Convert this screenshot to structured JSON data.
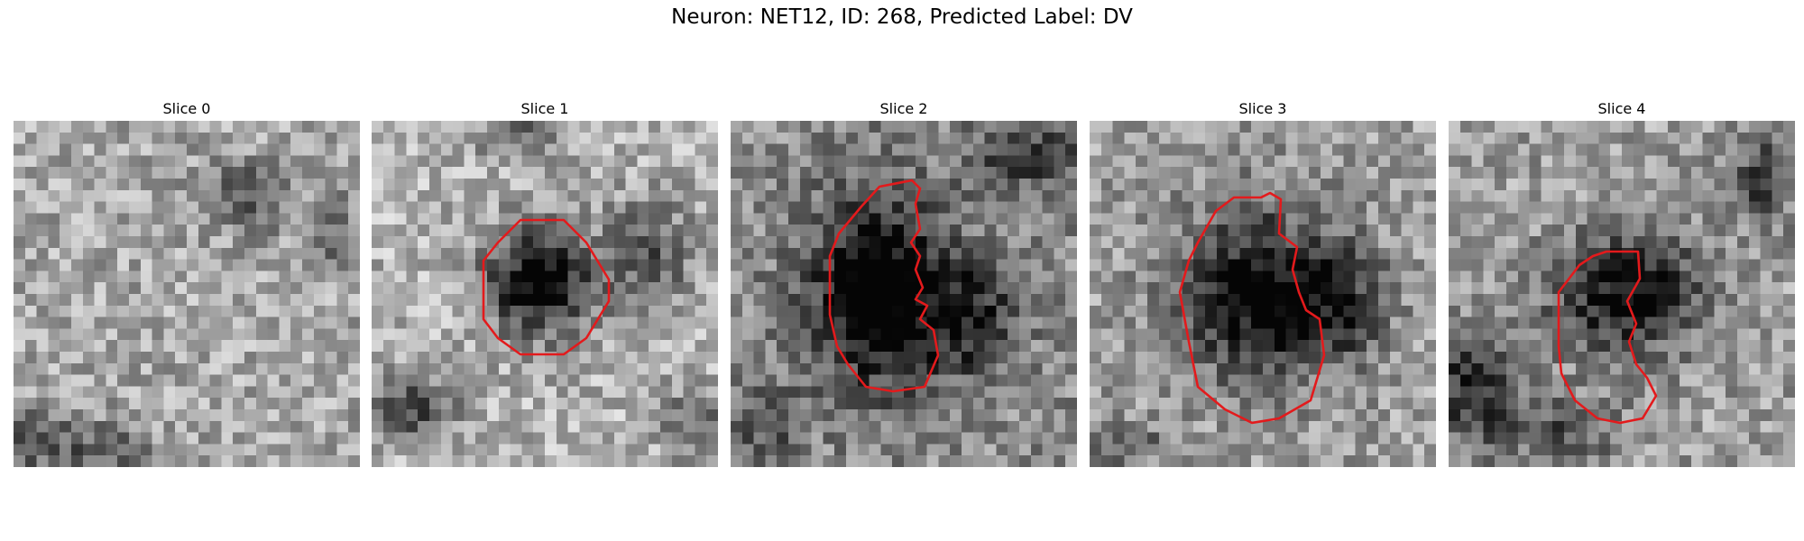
{
  "figure": {
    "title": "Neuron: NET12, ID: 268, Predicted Label: DV",
    "contour_color": "#e31a1c",
    "colormap": "gray",
    "grid_size": 30
  },
  "panels": [
    {
      "title": "Slice 0",
      "has_contour": false
    },
    {
      "title": "Slice 1",
      "has_contour": true
    },
    {
      "title": "Slice 2",
      "has_contour": true
    },
    {
      "title": "Slice 3",
      "has_contour": true
    },
    {
      "title": "Slice 4",
      "has_contour": true
    }
  ]
}
